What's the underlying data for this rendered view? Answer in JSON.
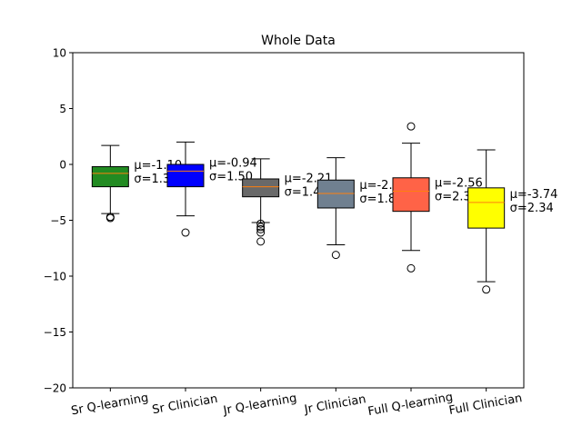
{
  "chart_data": {
    "type": "box",
    "title": "Whole Data",
    "xlabel": "",
    "ylabel": "",
    "ylim": [
      -20,
      10
    ],
    "yticks": [
      10,
      5,
      0,
      -5,
      -10,
      -15,
      -20
    ],
    "ytick_labels": [
      "10",
      "5",
      "0",
      "−5",
      "−10",
      "−15",
      "−20"
    ],
    "grid": false,
    "series": [
      {
        "name": "Sr Q-learning",
        "color": "#228b22",
        "q1": -2.0,
        "median": -0.8,
        "q3": -0.2,
        "whisker_low": -4.4,
        "whisker_high": 1.7,
        "outliers": [
          -4.7,
          -4.8
        ],
        "annotation": [
          "μ=-1.10",
          "σ=1.37"
        ]
      },
      {
        "name": "Sr Clinician",
        "color": "#0000ff",
        "q1": -2.0,
        "median": -0.6,
        "q3": 0.0,
        "whisker_low": -4.6,
        "whisker_high": 2.0,
        "outliers": [
          -6.1
        ],
        "annotation": [
          "μ=-0.94",
          "σ=1.50"
        ]
      },
      {
        "name": "Jr Q-learning",
        "color": "#696969",
        "q1": -2.9,
        "median": -2.0,
        "q3": -1.3,
        "whisker_low": -5.2,
        "whisker_high": 0.5,
        "outliers": [
          -5.3,
          -5.6,
          -5.8,
          -6.1,
          -6.9
        ],
        "annotation": [
          "μ=-2.21",
          "σ=1.41"
        ]
      },
      {
        "name": "Jr Clinician",
        "color": "#708090",
        "q1": -3.9,
        "median": -2.6,
        "q3": -1.4,
        "whisker_low": -7.2,
        "whisker_high": 0.6,
        "outliers": [
          -8.1
        ],
        "annotation": [
          "μ=-2.82",
          "σ=1.81"
        ]
      },
      {
        "name": "Full Q-learning",
        "color": "#ff6347",
        "q1": -4.2,
        "median": -2.4,
        "q3": -1.2,
        "whisker_low": -7.7,
        "whisker_high": 1.9,
        "outliers": [
          3.4,
          -9.3
        ],
        "annotation": [
          "μ=-2.56",
          "σ=2.30"
        ]
      },
      {
        "name": "Full Clinician",
        "color": "#ffff00",
        "q1": -5.7,
        "median": -3.4,
        "q3": -2.1,
        "whisker_low": -10.5,
        "whisker_high": 1.3,
        "outliers": [
          -11.2
        ],
        "annotation": [
          "μ=-3.74",
          "σ=2.34"
        ]
      }
    ],
    "median_color": "#ff7f0e"
  }
}
